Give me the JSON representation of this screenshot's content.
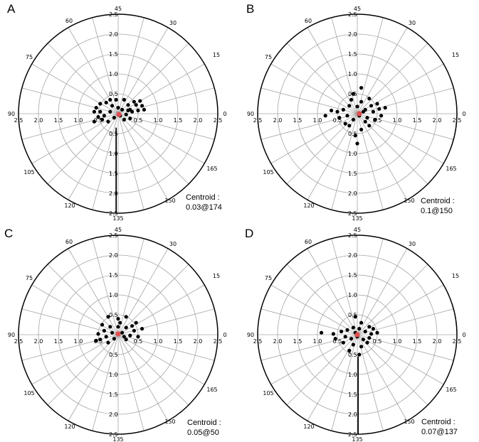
{
  "chart_data": [
    {
      "type": "scatter",
      "panel_label": "A",
      "radial_ticks": [
        "0.5",
        "1.0",
        "1.5",
        "2.0",
        "2.5"
      ],
      "angle_labels": [
        {
          "angle": 0,
          "text": "0"
        },
        {
          "angle": 15,
          "text": "15"
        },
        {
          "angle": 30,
          "text": "30"
        },
        {
          "angle": 45,
          "text": "45"
        },
        {
          "angle": 60,
          "text": "60"
        },
        {
          "angle": 75,
          "text": "75"
        },
        {
          "angle": 90,
          "text": "90"
        },
        {
          "angle": 105,
          "text": "105"
        },
        {
          "angle": 120,
          "text": "120"
        },
        {
          "angle": 135,
          "text": "135"
        },
        {
          "angle": 150,
          "text": "150"
        },
        {
          "angle": 165,
          "text": "165"
        }
      ],
      "rlim": [
        0,
        2.5
      ],
      "points": [
        [
          0.55,
          0.32
        ],
        [
          0.45,
          0.22
        ],
        [
          0.3,
          0.1
        ],
        [
          0.25,
          0.22
        ],
        [
          0.15,
          0.35
        ],
        [
          0.0,
          0.15
        ],
        [
          -0.15,
          0.2
        ],
        [
          -0.3,
          0.28
        ],
        [
          -0.45,
          0.25
        ],
        [
          -0.55,
          0.15
        ],
        [
          -0.6,
          0.05
        ],
        [
          -0.5,
          -0.08
        ],
        [
          -0.35,
          -0.05
        ],
        [
          -0.2,
          0.05
        ],
        [
          -0.1,
          -0.1
        ],
        [
          0.05,
          -0.05
        ],
        [
          0.2,
          -0.02
        ],
        [
          0.35,
          0.05
        ],
        [
          0.5,
          0.08
        ],
        [
          0.65,
          0.1
        ],
        [
          -0.4,
          -0.15
        ],
        [
          -0.25,
          -0.2
        ],
        [
          0.1,
          0.1
        ],
        [
          0.3,
          -0.12
        ],
        [
          -0.05,
          0.35
        ],
        [
          0.6,
          0.2
        ],
        [
          -0.2,
          0.35
        ],
        [
          0.4,
          0.3
        ],
        [
          -0.6,
          -0.2
        ],
        [
          0.15,
          -0.15
        ],
        [
          -0.45,
          0.05
        ],
        [
          0.25,
          0.08
        ]
      ],
      "centroid_point": [
        0.02,
        -0.02
      ],
      "centroid_label": "Centroid :",
      "centroid_value": "0.03@174",
      "leader_line": [
        [
          -0.05,
          -0.35
        ],
        [
          -0.05,
          -2.5
        ]
      ]
    },
    {
      "type": "scatter",
      "panel_label": "B",
      "radial_ticks": [
        "0.5",
        "1.0",
        "1.5",
        "2.0",
        "2.5"
      ],
      "angle_labels": [
        {
          "angle": 0,
          "text": "0"
        },
        {
          "angle": 15,
          "text": "15"
        },
        {
          "angle": 30,
          "text": "30"
        },
        {
          "angle": 45,
          "text": "45"
        },
        {
          "angle": 60,
          "text": "60"
        },
        {
          "angle": 75,
          "text": "75"
        },
        {
          "angle": 90,
          "text": "90"
        },
        {
          "angle": 105,
          "text": "105"
        },
        {
          "angle": 120,
          "text": "120"
        },
        {
          "angle": 135,
          "text": "135"
        },
        {
          "angle": 150,
          "text": "150"
        },
        {
          "angle": 165,
          "text": "165"
        }
      ],
      "rlim": [
        0,
        2.5
      ],
      "points": [
        [
          0.1,
          0.65
        ],
        [
          -0.1,
          0.5
        ],
        [
          0.1,
          0.3
        ],
        [
          0.3,
          0.38
        ],
        [
          0.5,
          0.25
        ],
        [
          0.7,
          0.15
        ],
        [
          0.4,
          0.05
        ],
        [
          0.2,
          0.1
        ],
        [
          0.0,
          0.18
        ],
        [
          -0.2,
          0.2
        ],
        [
          -0.35,
          0.1
        ],
        [
          -0.5,
          0.05
        ],
        [
          -0.65,
          0.08
        ],
        [
          -0.8,
          -0.05
        ],
        [
          -0.45,
          -0.1
        ],
        [
          -0.25,
          -0.05
        ],
        [
          -0.1,
          -0.15
        ],
        [
          0.05,
          -0.05
        ],
        [
          0.25,
          -0.1
        ],
        [
          0.45,
          -0.15
        ],
        [
          0.6,
          -0.05
        ],
        [
          0.3,
          -0.3
        ],
        [
          0.1,
          -0.4
        ],
        [
          -0.05,
          -0.55
        ],
        [
          0.0,
          -0.75
        ],
        [
          -0.2,
          -0.3
        ],
        [
          0.15,
          0.05
        ],
        [
          -0.15,
          0.35
        ],
        [
          0.35,
          0.2
        ],
        [
          -0.3,
          -0.25
        ],
        [
          0.55,
          0.12
        ],
        [
          0.2,
          -0.2
        ]
      ],
      "centroid_point": [
        0.05,
        0.0
      ],
      "centroid_label": "Centroid :",
      "centroid_value": "0.1@150",
      "leader_line": []
    },
    {
      "type": "scatter",
      "panel_label": "C",
      "radial_ticks": [
        "0.5",
        "1.0",
        "1.5",
        "2.0",
        "2.5"
      ],
      "angle_labels": [
        {
          "angle": 0,
          "text": "0"
        },
        {
          "angle": 15,
          "text": "15"
        },
        {
          "angle": 30,
          "text": "30"
        },
        {
          "angle": 45,
          "text": "45"
        },
        {
          "angle": 60,
          "text": "60"
        },
        {
          "angle": 75,
          "text": "75"
        },
        {
          "angle": 90,
          "text": "90"
        },
        {
          "angle": 105,
          "text": "105"
        },
        {
          "angle": 120,
          "text": "120"
        },
        {
          "angle": 135,
          "text": "135"
        },
        {
          "angle": 150,
          "text": "150"
        },
        {
          "angle": 165,
          "text": "165"
        }
      ],
      "rlim": [
        0,
        2.5
      ],
      "points": [
        [
          -0.25,
          0.45
        ],
        [
          0.0,
          0.4
        ],
        [
          0.2,
          0.45
        ],
        [
          0.45,
          0.3
        ],
        [
          0.6,
          0.15
        ],
        [
          0.4,
          0.1
        ],
        [
          0.2,
          0.18
        ],
        [
          0.0,
          0.2
        ],
        [
          -0.2,
          0.2
        ],
        [
          -0.35,
          0.1
        ],
        [
          -0.5,
          0.02
        ],
        [
          -0.45,
          -0.12
        ],
        [
          -0.3,
          -0.05
        ],
        [
          -0.15,
          0.05
        ],
        [
          0.1,
          0.05
        ],
        [
          0.3,
          -0.02
        ],
        [
          0.5,
          -0.05
        ],
        [
          -0.1,
          -0.1
        ],
        [
          0.2,
          -0.12
        ],
        [
          -0.25,
          -0.2
        ],
        [
          0.05,
          0.3
        ],
        [
          -0.4,
          0.25
        ],
        [
          0.35,
          0.22
        ],
        [
          -0.55,
          -0.15
        ],
        [
          0.15,
          -0.05
        ]
      ],
      "centroid_point": [
        0.0,
        0.02
      ],
      "centroid_label": "Centroid :",
      "centroid_value": "0.05@50",
      "leader_line": []
    },
    {
      "type": "scatter",
      "panel_label": "D",
      "radial_ticks": [
        "0.5",
        "1.0",
        "1.5",
        "2.0",
        "2.5"
      ],
      "angle_labels": [
        {
          "angle": 0,
          "text": "0"
        },
        {
          "angle": 15,
          "text": "15"
        },
        {
          "angle": 30,
          "text": "30"
        },
        {
          "angle": 45,
          "text": "45"
        },
        {
          "angle": 60,
          "text": "60"
        },
        {
          "angle": 75,
          "text": "75"
        },
        {
          "angle": 90,
          "text": "90"
        },
        {
          "angle": 105,
          "text": "105"
        },
        {
          "angle": 120,
          "text": "120"
        },
        {
          "angle": 135,
          "text": "135"
        },
        {
          "angle": 150,
          "text": "150"
        },
        {
          "angle": 165,
          "text": "165"
        }
      ],
      "rlim": [
        0,
        2.5
      ],
      "points": [
        [
          -0.05,
          0.45
        ],
        [
          0.1,
          0.3
        ],
        [
          0.3,
          0.2
        ],
        [
          0.5,
          0.05
        ],
        [
          0.35,
          0.02
        ],
        [
          0.2,
          0.08
        ],
        [
          0.05,
          0.15
        ],
        [
          -0.1,
          0.18
        ],
        [
          -0.25,
          0.12
        ],
        [
          -0.4,
          0.08
        ],
        [
          -0.6,
          0.02
        ],
        [
          -0.9,
          0.05
        ],
        [
          -0.55,
          -0.1
        ],
        [
          -0.3,
          -0.05
        ],
        [
          -0.15,
          -0.1
        ],
        [
          0.0,
          -0.05
        ],
        [
          0.15,
          -0.12
        ],
        [
          0.3,
          -0.08
        ],
        [
          -0.1,
          -0.25
        ],
        [
          0.1,
          -0.3
        ],
        [
          -0.2,
          -0.4
        ],
        [
          0.05,
          -0.5
        ],
        [
          -0.05,
          0.05
        ],
        [
          0.25,
          -0.2
        ],
        [
          -0.35,
          -0.2
        ],
        [
          0.4,
          0.15
        ]
      ],
      "centroid_point": [
        0.0,
        0.0
      ],
      "centroid_label": "Centroid :",
      "centroid_value": "0.07@137",
      "leader_line": [
        [
          0.02,
          -0.55
        ],
        [
          0.02,
          -2.5
        ]
      ]
    }
  ],
  "colors": {
    "outer_circle": "#000000",
    "grid": "#a6a6a6",
    "points": "#000000",
    "centroid": "#e05050"
  }
}
